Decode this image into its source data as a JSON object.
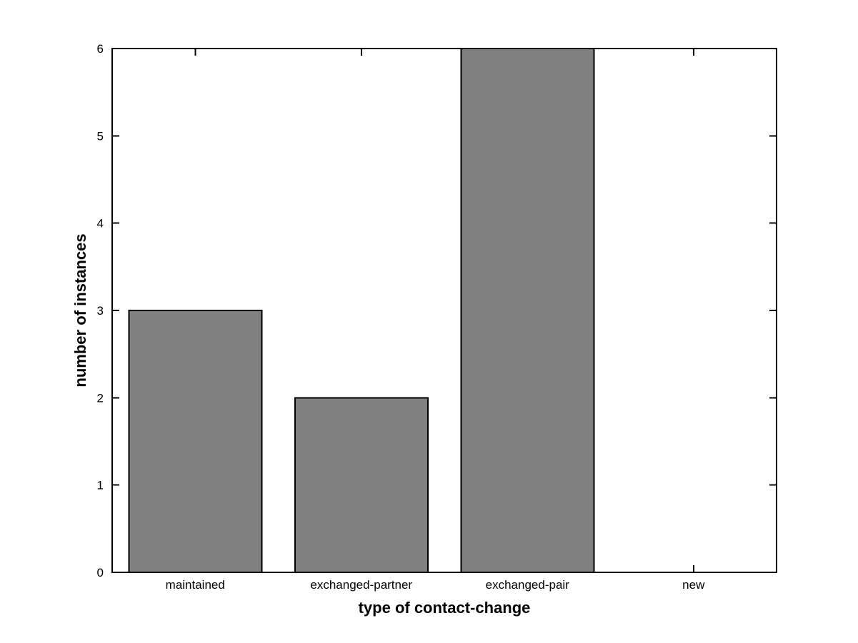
{
  "figure": {
    "background": "#ffffff"
  },
  "chart_data": {
    "type": "bar",
    "title": "",
    "categories": [
      "maintained",
      "exchanged-partner",
      "exchanged-pair",
      "new"
    ],
    "values": [
      3,
      2,
      6,
      0
    ],
    "xlabel": "type of contact-change",
    "ylabel": "number of instances",
    "ylim": [
      0,
      6
    ],
    "yticks": [
      0,
      1,
      2,
      3,
      4,
      5,
      6
    ],
    "ytick_labels": [
      "0",
      "1",
      "2",
      "3",
      "4",
      "5",
      "6"
    ],
    "bar_width_ratio": 0.8,
    "bar_color": "#808080",
    "bar_edge_color": "#000000",
    "axis_color": "#000000",
    "grid": false,
    "legend_position": "none"
  }
}
